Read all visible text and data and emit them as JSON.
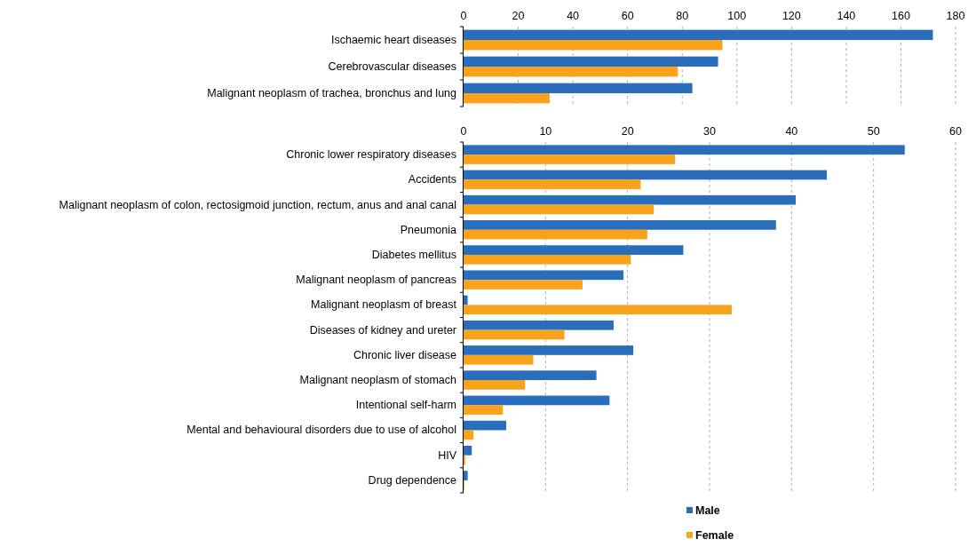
{
  "chart_data": [
    {
      "type": "bar",
      "orientation": "horizontal",
      "categories": [
        "Ischaemic heart diseases",
        "Cerebrovascular diseases",
        "Malignant neoplasm of trachea, bronchus and lung"
      ],
      "series": [
        {
          "color": "#2a6ebb",
          "values": [
            171.7,
            93.1,
            83.7
          ]
        },
        {
          "color": "#f9a21c",
          "values": [
            94.7,
            78.4,
            31.5
          ]
        }
      ],
      "xlim": [
        0,
        180
      ],
      "xticks": [
        0,
        20,
        40,
        60,
        80,
        100,
        120,
        140,
        160,
        180
      ],
      "grid": "x"
    },
    {
      "type": "bar",
      "orientation": "horizontal",
      "categories": [
        "Chronic lower respiratory diseases",
        "Accidents",
        "Malignant neoplasm of colon, rectosigmoid junction, rectum, anus and anal canal",
        "Pneumonia",
        "Diabetes mellitus",
        "Malignant neoplasm of pancreas",
        "Malignant neoplasm of breast",
        "Diseases of kidney and ureter",
        "Chronic liver disease",
        "Malignant neoplasm of stomach",
        "Intentional self-harm",
        "Mental and behavioural disorders due to use of alcohol",
        "HIV",
        "Drug dependence"
      ],
      "series": [
        {
          "name": "Male",
          "color": "#2a6ebb",
          "values": [
            53.8,
            44.3,
            40.5,
            38.1,
            26.8,
            19.5,
            0.5,
            18.3,
            20.7,
            16.2,
            17.8,
            5.2,
            1.0,
            0.5
          ]
        },
        {
          "name": "Female",
          "color": "#f9a21c",
          "values": [
            25.8,
            21.6,
            23.2,
            22.4,
            20.4,
            14.5,
            32.7,
            12.3,
            8.5,
            7.5,
            4.8,
            1.2,
            0.2,
            0.1
          ]
        }
      ],
      "xlim": [
        0,
        60
      ],
      "xticks": [
        0,
        10,
        20,
        30,
        40,
        50,
        60
      ],
      "grid": "x",
      "legend": "bottom"
    }
  ]
}
